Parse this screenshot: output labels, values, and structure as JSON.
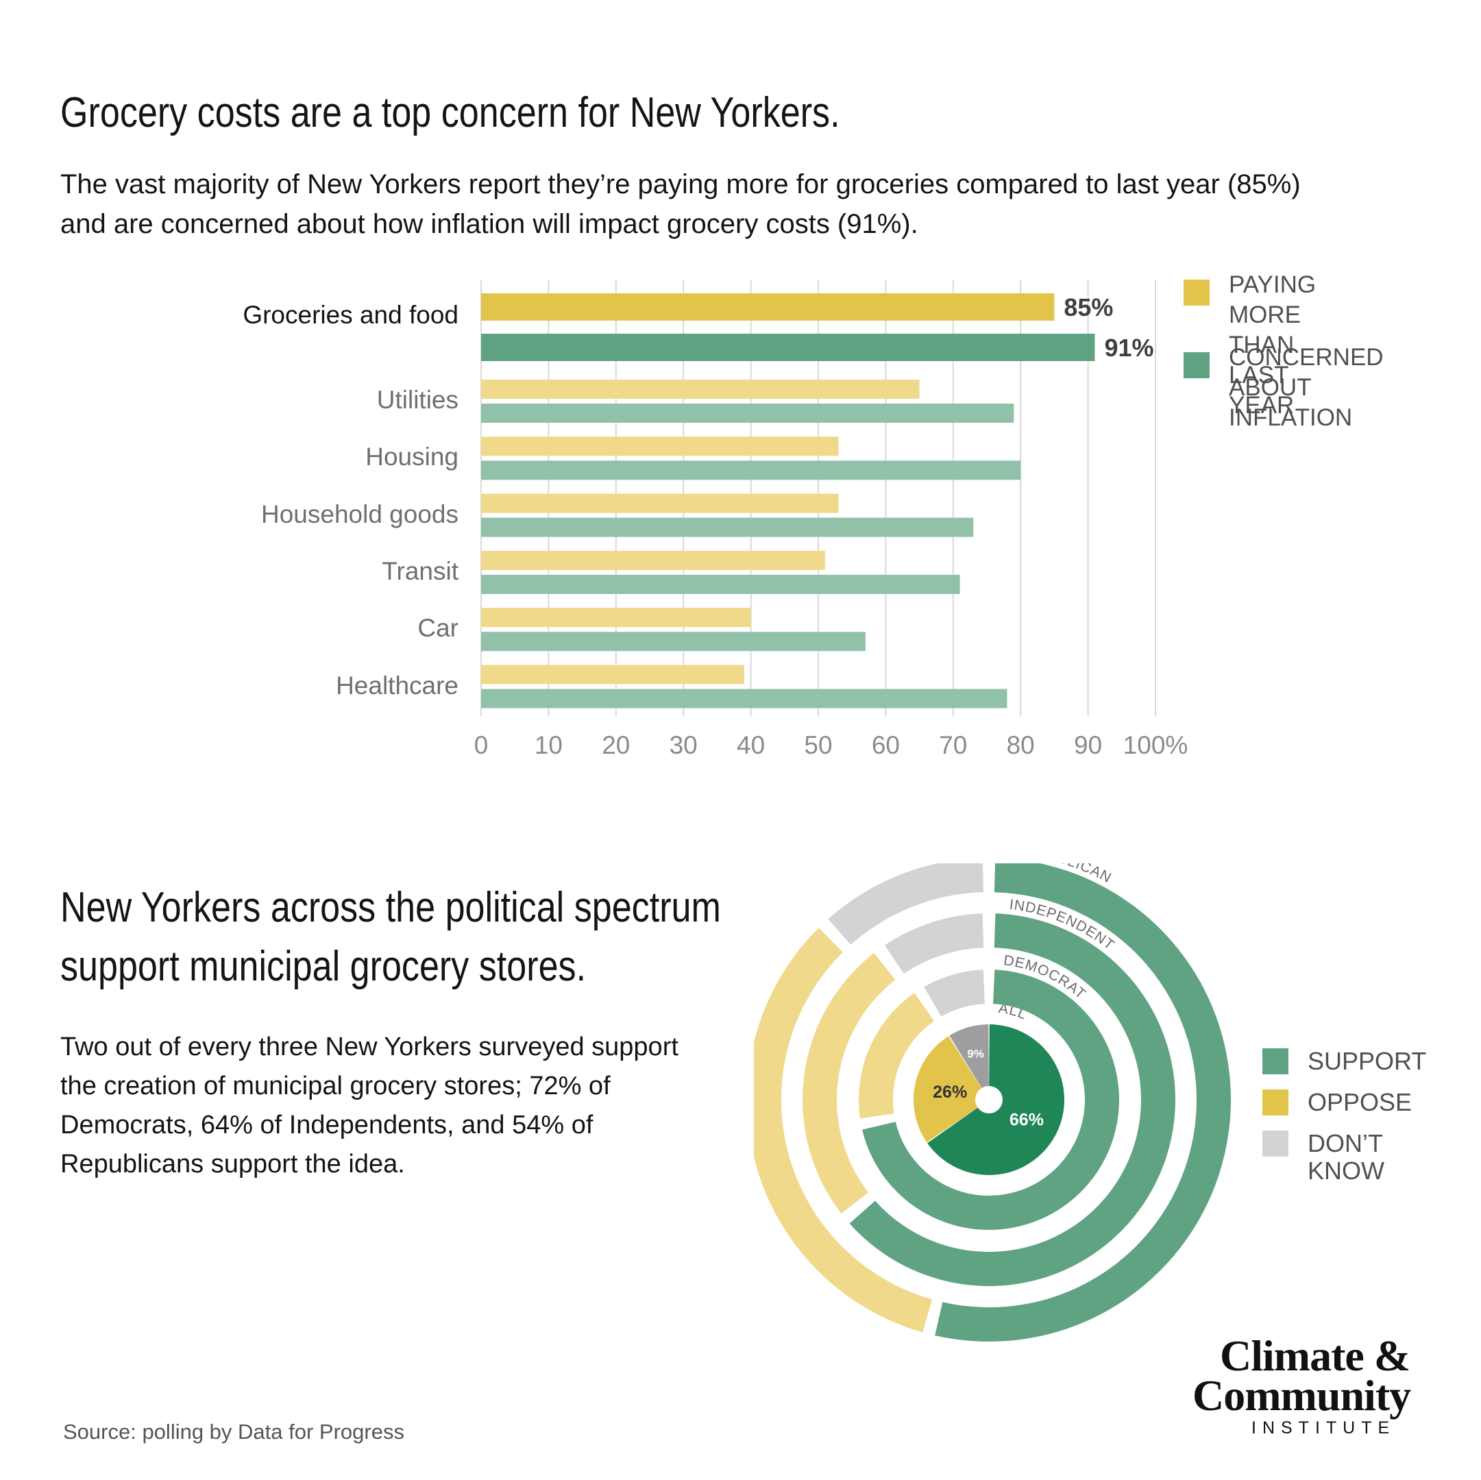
{
  "section1": {
    "title": "Grocery costs are a top concern for New Yorkers.",
    "subtitle": "The vast majority of New Yorkers report they’re paying more for groceries compared to last year (85%) and are concerned about how inflation will impact grocery costs (91%)."
  },
  "section2": {
    "title_line1": "New Yorkers across the political spectrum",
    "title_line2": "support municipal grocery stores.",
    "body": "Two out of every three New Yorkers surveyed support the creation of municipal grocery stores; 72% of Democrats, 64% of Independents, and 54% of Republicans support the idea."
  },
  "colors": {
    "paying_more": "#e3c44b",
    "paying_more_light": "#f0d98a",
    "concerned": "#5fa383",
    "concerned_light": "#92c1a9",
    "support": "#5fa383",
    "support_dark": "#1f8657",
    "oppose": "#f0d98a",
    "oppose_inner": "#e3c44b",
    "dont_know": "#d1d3d4",
    "dont_know_inner": "#9e9e9e"
  },
  "chart_data": [
    {
      "type": "bar",
      "orientation": "horizontal",
      "categories": [
        "Groceries and food",
        "Utilities",
        "Housing",
        "Household goods",
        "Transit",
        "Car",
        "Healthcare"
      ],
      "series": [
        {
          "name": "PAYING MORE THAN LAST YEAR",
          "values": [
            85,
            65,
            53,
            53,
            51,
            40,
            39
          ]
        },
        {
          "name": "CONCERNED ABOUT INFLATION",
          "values": [
            91,
            79,
            80,
            73,
            71,
            57,
            78
          ]
        }
      ],
      "data_labels": [
        "85%",
        "91%"
      ],
      "x_ticks": [
        "0",
        "10",
        "20",
        "30",
        "40",
        "50",
        "60",
        "70",
        "80",
        "90",
        "100%"
      ],
      "xlim": [
        0,
        100
      ],
      "grid": "vertical",
      "legend": [
        {
          "label": "PAYING MORE\nTHAN LAST YEAR",
          "color": "#e3c44b"
        },
        {
          "label": "CONCERNED\nABOUT INFLATION",
          "color": "#5fa383"
        }
      ],
      "legend_position": "top-right"
    },
    {
      "type": "pie",
      "style": "nested-donut",
      "rings": [
        {
          "name": "ALL",
          "support": 66,
          "oppose": 26,
          "dont_know": 9
        },
        {
          "name": "DEMOCRAT",
          "support": 72,
          "oppose": 19,
          "dont_know": 9
        },
        {
          "name": "INDEPENDENT",
          "support": 64,
          "oppose": 26,
          "dont_know": 10
        },
        {
          "name": "REPUBLICAN",
          "support": 54,
          "oppose": 34,
          "dont_know": 12
        }
      ],
      "center_labels": [
        "66%",
        "26%",
        "9%"
      ],
      "legend": [
        {
          "label": "SUPPORT",
          "color": "#5fa383"
        },
        {
          "label": "OPPOSE",
          "color": "#e3c44b"
        },
        {
          "label": "DON’T KNOW",
          "color": "#d1d3d4"
        }
      ],
      "legend_position": "right"
    }
  ],
  "source": "Source: polling by Data for Progress",
  "logo": {
    "line1": "Climate &",
    "line2": "Community",
    "line3": "INSTITUTE"
  }
}
